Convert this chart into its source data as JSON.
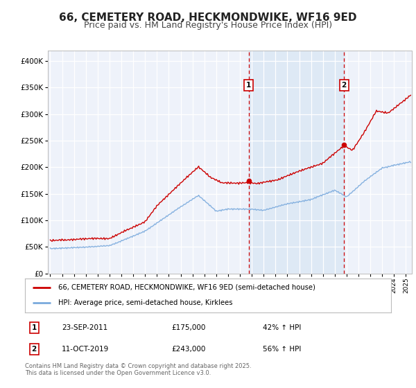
{
  "title": "66, CEMETERY ROAD, HECKMONDWIKE, WF16 9ED",
  "subtitle": "Price paid vs. HM Land Registry's House Price Index (HPI)",
  "title_fontsize": 11,
  "subtitle_fontsize": 9,
  "legend_line1": "66, CEMETERY ROAD, HECKMONDWIKE, WF16 9ED (semi-detached house)",
  "legend_line2": "HPI: Average price, semi-detached house, Kirklees",
  "marker1_date": "23-SEP-2011",
  "marker1_value": 175000,
  "marker1_label": "42% ↑ HPI",
  "marker2_date": "11-OCT-2019",
  "marker2_value": 243000,
  "marker2_label": "56% ↑ HPI",
  "marker1_x": 2011.73,
  "marker2_x": 2019.78,
  "footnote": "Contains HM Land Registry data © Crown copyright and database right 2025.\nThis data is licensed under the Open Government Licence v3.0.",
  "price_color": "#cc0000",
  "hpi_color": "#7aaadd",
  "background_color": "#ffffff",
  "plot_bg_color": "#eef2fa",
  "grid_color": "#ffffff",
  "span_color": "#dce8f5",
  "ylim": [
    0,
    420000
  ],
  "xlim": [
    1994.8,
    2025.5
  ],
  "yticks": [
    0,
    50000,
    100000,
    150000,
    200000,
    250000,
    300000,
    350000,
    400000
  ],
  "ytick_labels": [
    "£0",
    "£50K",
    "£100K",
    "£150K",
    "£200K",
    "£250K",
    "£300K",
    "£350K",
    "£400K"
  ],
  "xticks": [
    1995,
    1996,
    1997,
    1998,
    1999,
    2000,
    2001,
    2002,
    2003,
    2004,
    2005,
    2006,
    2007,
    2008,
    2009,
    2010,
    2011,
    2012,
    2013,
    2014,
    2015,
    2016,
    2017,
    2018,
    2019,
    2020,
    2021,
    2022,
    2023,
    2024,
    2025
  ]
}
